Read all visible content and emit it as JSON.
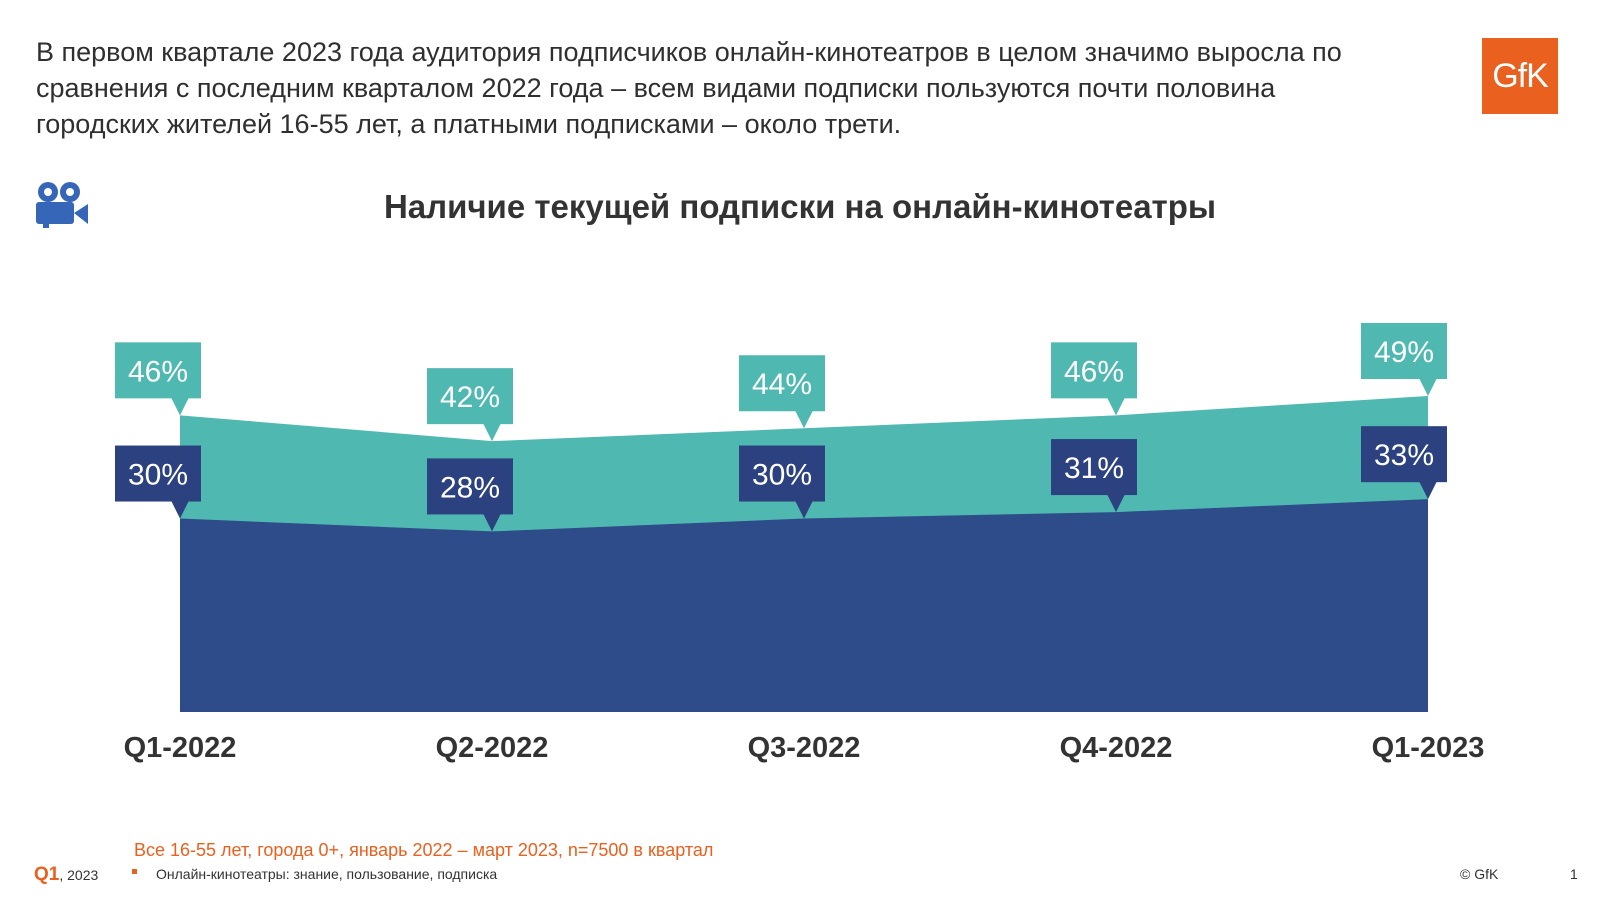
{
  "headline": "В первом квартале 2023 года аудитория подписчиков онлайн-кинотеатров в целом значимо выросла по сравнения с последним кварталом 2022 года – всем видами подписки пользуются почти половина городских жителей 16-55 лет, а платными подписками – около трети.",
  "logo_text": "GfK",
  "camera_icon": "video-camera-icon",
  "colors": {
    "accent": "#e9601f",
    "all_subscriptions": "#4fb8b1",
    "paid_subscriptions": "#2e4c8a",
    "label_dark": "#2c4180"
  },
  "chart_data": {
    "type": "area",
    "title": "Наличие текущей подписки на онлайн-кинотеатры",
    "categories": [
      "Q1-2022",
      "Q2-2022",
      "Q3-2022",
      "Q4-2022",
      "Q1-2023"
    ],
    "series": [
      {
        "values": [
          46,
          42,
          44,
          46,
          49
        ],
        "labels": [
          "46%",
          "42%",
          "44%",
          "46%",
          "49%"
        ]
      },
      {
        "values": [
          30,
          28,
          30,
          31,
          33
        ],
        "labels": [
          "30%",
          "28%",
          "30%",
          "31%",
          "33%"
        ]
      }
    ],
    "xlabel": "",
    "ylabel": "",
    "ylim": [
      0,
      49
    ],
    "grid": false
  },
  "note": "Все 16-55 лет, города 0+, январь 2022 – март 2023, n=7500 в квартал",
  "footer": {
    "quarter": "Q1",
    "year": ", 2023",
    "subtitle": "Онлайн-кинотеатры: знание, пользование, подписка",
    "copyright": "© GfK",
    "page": "1"
  }
}
